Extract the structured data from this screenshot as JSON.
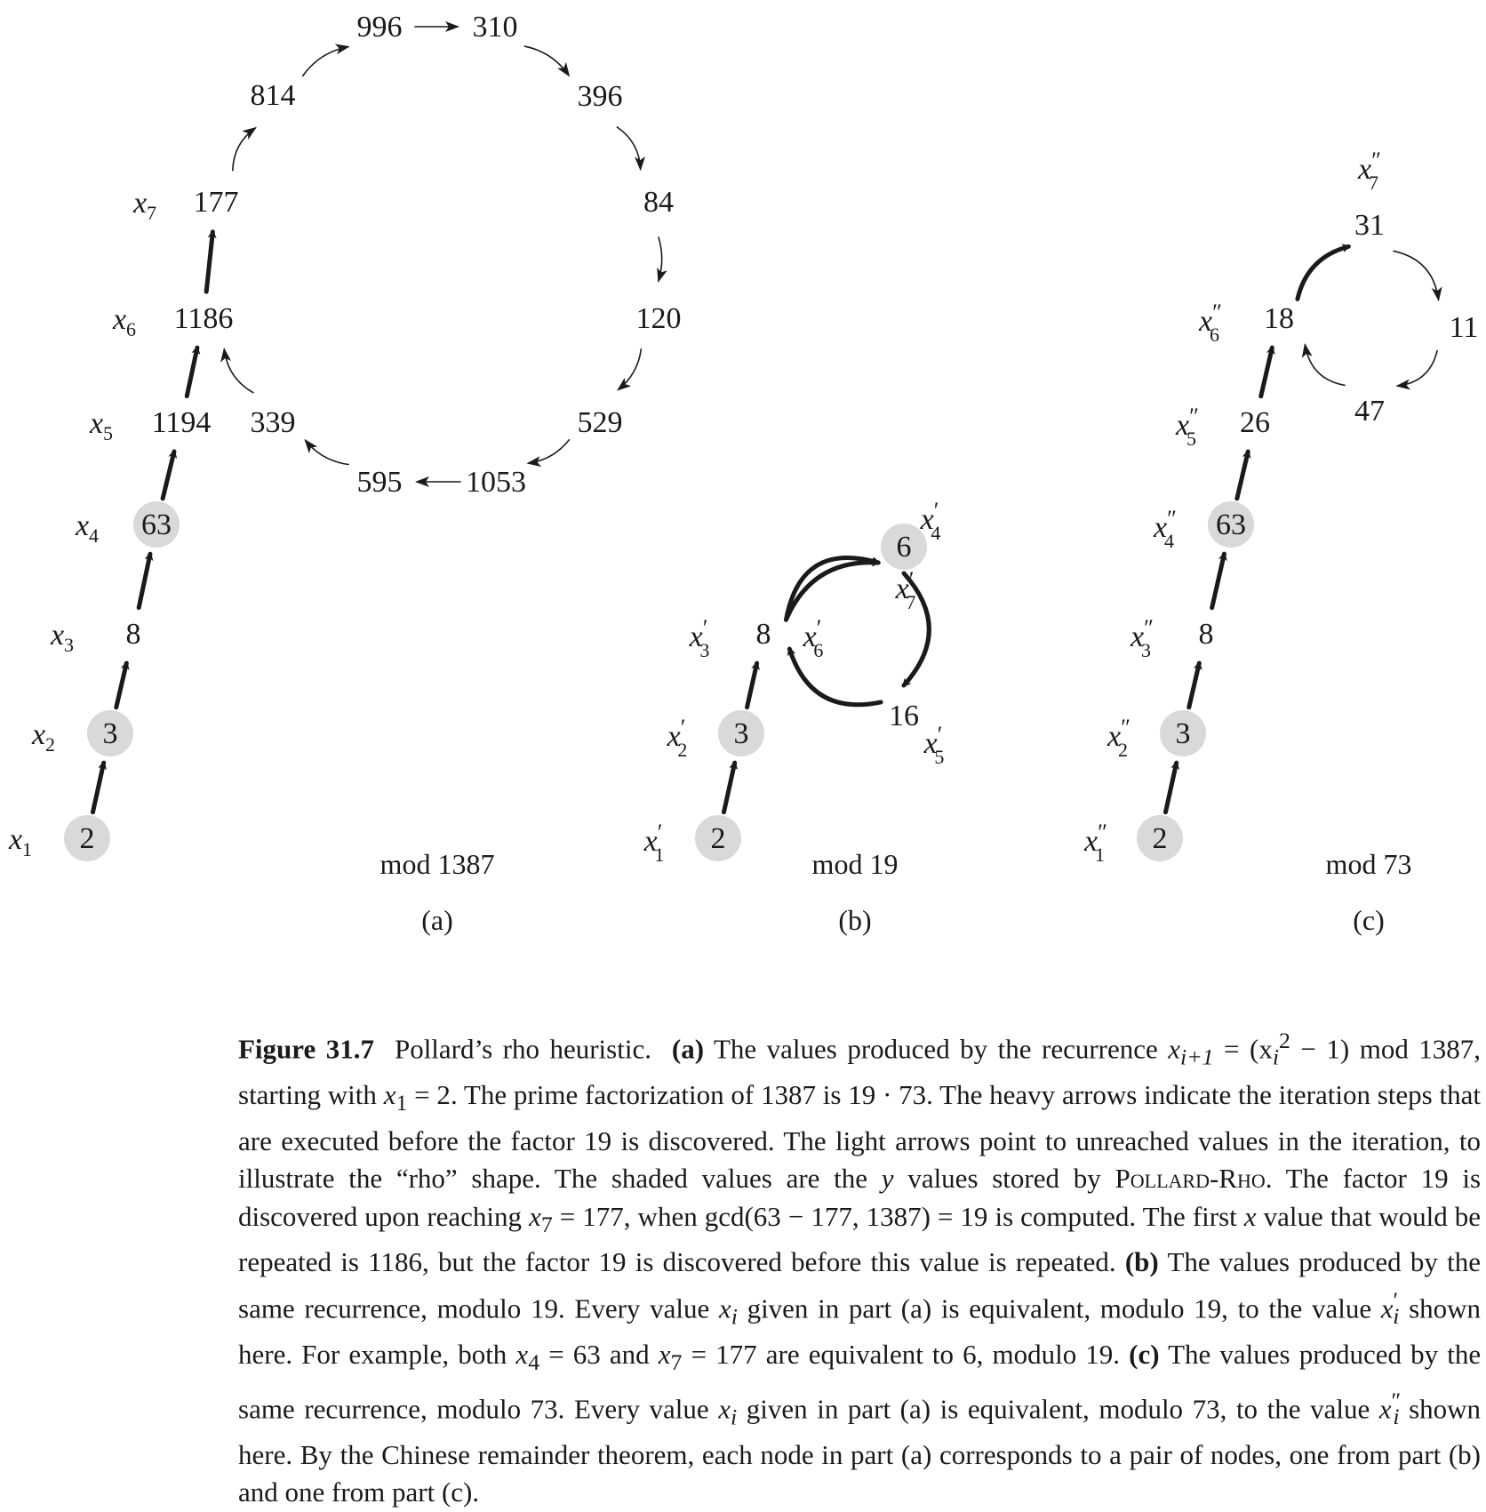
{
  "figure": {
    "panels": [
      {
        "id": "a",
        "mod_label": "mod 1387",
        "part_label": "(a)",
        "nodes": [
          {
            "id": "a2",
            "value": "2",
            "label_base": "x",
            "label_sub": "1",
            "shaded": true
          },
          {
            "id": "a3",
            "value": "3",
            "label_base": "x",
            "label_sub": "2",
            "shaded": true
          },
          {
            "id": "a8",
            "value": "8",
            "label_base": "x",
            "label_sub": "3",
            "shaded": false
          },
          {
            "id": "a63",
            "value": "63",
            "label_base": "x",
            "label_sub": "4",
            "shaded": true
          },
          {
            "id": "a1194",
            "value": "1194",
            "label_base": "x",
            "label_sub": "5",
            "shaded": false
          },
          {
            "id": "a1186",
            "value": "1186",
            "label_base": "x",
            "label_sub": "6",
            "shaded": false
          },
          {
            "id": "a177",
            "value": "177",
            "label_base": "x",
            "label_sub": "7",
            "shaded": false
          },
          {
            "id": "a814",
            "value": "814",
            "shaded": false
          },
          {
            "id": "a996",
            "value": "996",
            "shaded": false
          },
          {
            "id": "a310",
            "value": "310",
            "shaded": false
          },
          {
            "id": "a396",
            "value": "396",
            "shaded": false
          },
          {
            "id": "a84",
            "value": "84",
            "shaded": false
          },
          {
            "id": "a120",
            "value": "120",
            "shaded": false
          },
          {
            "id": "a529",
            "value": "529",
            "shaded": false
          },
          {
            "id": "a1053",
            "value": "1053",
            "shaded": false
          },
          {
            "id": "a595",
            "value": "595",
            "shaded": false
          },
          {
            "id": "a339",
            "value": "339",
            "shaded": false
          }
        ]
      },
      {
        "id": "b",
        "mod_label": "mod 19",
        "part_label": "(b)",
        "nodes": [
          {
            "id": "b2",
            "value": "2",
            "label_base": "x",
            "label_sub": "1",
            "label_prime": "′",
            "shaded": true
          },
          {
            "id": "b3",
            "value": "3",
            "label_base": "x",
            "label_sub": "2",
            "label_prime": "′",
            "shaded": true
          },
          {
            "id": "b8",
            "value": "8",
            "label_base": "x",
            "label_sub": "3",
            "label_prime": "′",
            "label2_base": "x",
            "label2_sub": "6",
            "label2_prime": "′",
            "shaded": false
          },
          {
            "id": "b6",
            "value": "6",
            "label_base": "x",
            "label_sub": "4",
            "label_prime": "′",
            "label2_base": "x",
            "label2_sub": "7",
            "label2_prime": "′",
            "shaded": true
          },
          {
            "id": "b16",
            "value": "16",
            "label_base": "x",
            "label_sub": "5",
            "label_prime": "′",
            "shaded": false
          }
        ]
      },
      {
        "id": "c",
        "mod_label": "mod 73",
        "part_label": "(c)",
        "nodes": [
          {
            "id": "c2",
            "value": "2",
            "label_base": "x",
            "label_sub": "1",
            "label_prime": "″",
            "shaded": true
          },
          {
            "id": "c3",
            "value": "3",
            "label_base": "x",
            "label_sub": "2",
            "label_prime": "″",
            "shaded": true
          },
          {
            "id": "c8",
            "value": "8",
            "label_base": "x",
            "label_sub": "3",
            "label_prime": "″",
            "shaded": false
          },
          {
            "id": "c63",
            "value": "63",
            "label_base": "x",
            "label_sub": "4",
            "label_prime": "″",
            "shaded": true
          },
          {
            "id": "c26",
            "value": "26",
            "label_base": "x",
            "label_sub": "5",
            "label_prime": "″",
            "shaded": false
          },
          {
            "id": "c18",
            "value": "18",
            "label_base": "x",
            "label_sub": "6",
            "label_prime": "″",
            "shaded": false
          },
          {
            "id": "c31",
            "value": "31",
            "label_base": "x",
            "label_sub": "7",
            "label_prime": "″",
            "shaded": false
          },
          {
            "id": "c11",
            "value": "11",
            "shaded": false
          },
          {
            "id": "c47",
            "value": "47",
            "shaded": false
          }
        ]
      }
    ],
    "edges": [
      {
        "from": "a2",
        "to": "a3",
        "weight": "heavy"
      },
      {
        "from": "a3",
        "to": "a8",
        "weight": "heavy"
      },
      {
        "from": "a8",
        "to": "a63",
        "weight": "heavy"
      },
      {
        "from": "a63",
        "to": "a1194",
        "weight": "heavy"
      },
      {
        "from": "a1194",
        "to": "a1186",
        "weight": "heavy"
      },
      {
        "from": "a1186",
        "to": "a177",
        "weight": "heavy"
      },
      {
        "from": "a177",
        "to": "a814",
        "weight": "light"
      },
      {
        "from": "a814",
        "to": "a996",
        "weight": "light"
      },
      {
        "from": "a996",
        "to": "a310",
        "weight": "light"
      },
      {
        "from": "a310",
        "to": "a396",
        "weight": "light"
      },
      {
        "from": "a396",
        "to": "a84",
        "weight": "light"
      },
      {
        "from": "a84",
        "to": "a120",
        "weight": "light"
      },
      {
        "from": "a120",
        "to": "a529",
        "weight": "light"
      },
      {
        "from": "a529",
        "to": "a1053",
        "weight": "light"
      },
      {
        "from": "a1053",
        "to": "a595",
        "weight": "light"
      },
      {
        "from": "a595",
        "to": "a339",
        "weight": "light"
      },
      {
        "from": "a339",
        "to": "a1186",
        "weight": "light"
      },
      {
        "from": "b2",
        "to": "b3",
        "weight": "heavy"
      },
      {
        "from": "b3",
        "to": "b8",
        "weight": "heavy"
      },
      {
        "from": "b8",
        "to": "b6",
        "weight": "heavy"
      },
      {
        "from": "b6",
        "to": "b16",
        "weight": "heavy"
      },
      {
        "from": "b16",
        "to": "b8",
        "weight": "heavy"
      },
      {
        "from": "b8",
        "to": "b6",
        "weight": "heavy"
      },
      {
        "from": "c2",
        "to": "c3",
        "weight": "heavy"
      },
      {
        "from": "c3",
        "to": "c8",
        "weight": "heavy"
      },
      {
        "from": "c8",
        "to": "c63",
        "weight": "heavy"
      },
      {
        "from": "c63",
        "to": "c26",
        "weight": "heavy"
      },
      {
        "from": "c26",
        "to": "c18",
        "weight": "heavy"
      },
      {
        "from": "c18",
        "to": "c31",
        "weight": "heavy"
      },
      {
        "from": "c31",
        "to": "c11",
        "weight": "light"
      },
      {
        "from": "c11",
        "to": "c47",
        "weight": "light"
      },
      {
        "from": "c47",
        "to": "c18",
        "weight": "light"
      }
    ],
    "shade_color": "#d9d9d9"
  },
  "caption": {
    "title": "Figure 31.7",
    "heading": "Pollard’s rho heuristic.",
    "part_a_tag": "(a)",
    "part_a_text_1": "The values produced by the recurrence",
    "part_a_text_2": "mod 1387, starting with",
    "part_a_text_3": ". The prime factorization of 1387 is 19 · 73. The heavy arrows indicate the iteration steps that are executed before the factor 19 is discovered. The light arrows point to unreached values in the iteration, to illustrate the “rho” shape. The shaded values are the",
    "part_a_text_4": "values stored by",
    "pollard_rho": "Pollard-Rho",
    "part_a_text_5": ". The factor 19 is discovered upon reaching",
    "part_a_text_6": ", when gcd(63 − 177, 1387) = 19 is computed. The first",
    "part_a_text_7": "value that would be repeated is 1186, but the factor 19 is discovered before this value is repeated.",
    "part_b_tag": "(b)",
    "part_b_text_1": "The values produced by the same recurrence, modulo 19. Every value",
    "part_b_text_2": "given in part (a) is equivalent, modulo 19, to the value",
    "part_b_text_3": "shown here. For example, both",
    "part_b_text_4": "and",
    "part_b_text_5": "are equivalent to 6, modulo 19.",
    "part_c_tag": "(c)",
    "part_c_text_1": "The values produced by the same recurrence, modulo 73. Every value",
    "part_c_text_2": "given in part (a) is equivalent, modulo 73, to the value",
    "part_c_text_3": "shown here. By the Chinese remainder theorem, each node in part (a) corresponds to a pair of nodes, one from part (b) and one from part (c).",
    "math_recurrence_lhs": "x",
    "math_recurrence_lhs_sub": "i+1",
    "math_recurrence_rhs": "= (x",
    "math_recurrence_rhs_sub": "i",
    "math_recurrence_rhs_sup": "2",
    "math_recurrence_rhs_end": "− 1)",
    "math_x1": "x",
    "math_x1_sub": "1",
    "math_x1_eq": " = 2",
    "math_y": "y",
    "math_x7": "x",
    "math_x7_sub": "7",
    "math_x7_eq": " = 177",
    "math_x": "x",
    "math_xi": "x",
    "math_xi_sub": "i",
    "math_xi_prime": "′",
    "math_xi_dprime": "″",
    "math_x4": "x",
    "math_x4_sub": "4",
    "math_x4_eq": " = 63"
  }
}
